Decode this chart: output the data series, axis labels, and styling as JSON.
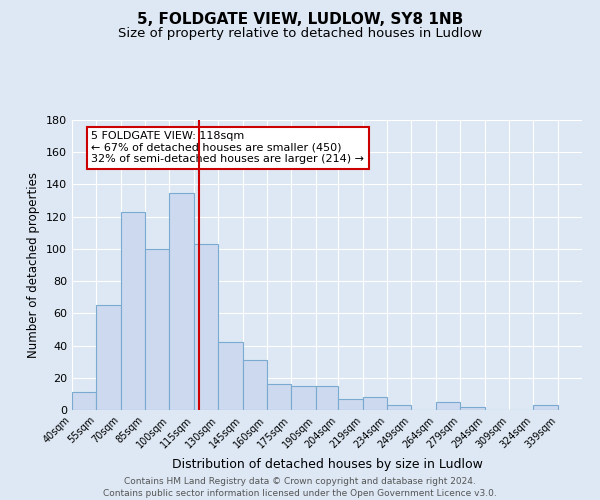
{
  "title": "5, FOLDGATE VIEW, LUDLOW, SY8 1NB",
  "subtitle": "Size of property relative to detached houses in Ludlow",
  "xlabel": "Distribution of detached houses by size in Ludlow",
  "ylabel": "Number of detached properties",
  "bar_left_edges": [
    40,
    55,
    70,
    85,
    100,
    115,
    130,
    145,
    160,
    175,
    190,
    204,
    219,
    234,
    249,
    264,
    279,
    294,
    309,
    324
  ],
  "bar_widths": [
    15,
    15,
    15,
    15,
    15,
    15,
    15,
    15,
    15,
    15,
    14,
    15,
    15,
    15,
    15,
    15,
    15,
    15,
    15,
    15
  ],
  "bar_heights": [
    11,
    65,
    123,
    100,
    135,
    103,
    42,
    31,
    16,
    15,
    15,
    7,
    8,
    3,
    0,
    5,
    2,
    0,
    0,
    3
  ],
  "bar_color": "#ccd9ee",
  "bar_edge_color": "#7aaad0",
  "x_tick_labels": [
    "40sqm",
    "55sqm",
    "70sqm",
    "85sqm",
    "100sqm",
    "115sqm",
    "130sqm",
    "145sqm",
    "160sqm",
    "175sqm",
    "190sqm",
    "204sqm",
    "219sqm",
    "234sqm",
    "249sqm",
    "264sqm",
    "279sqm",
    "294sqm",
    "309sqm",
    "324sqm",
    "339sqm"
  ],
  "ylim": [
    0,
    180
  ],
  "yticks": [
    0,
    20,
    40,
    60,
    80,
    100,
    120,
    140,
    160,
    180
  ],
  "vline_x": 118,
  "vline_color": "#cc0000",
  "annotation_text": "5 FOLDGATE VIEW: 118sqm\n← 67% of detached houses are smaller (450)\n32% of semi-detached houses are larger (214) →",
  "annotation_box_color": "#ffffff",
  "annotation_box_edge": "#cc0000",
  "footer_line1": "Contains HM Land Registry data © Crown copyright and database right 2024.",
  "footer_line2": "Contains public sector information licensed under the Open Government Licence v3.0.",
  "background_color": "#dde8f4",
  "plot_bg_color": "#dde8f4",
  "title_fontsize": 11,
  "subtitle_fontsize": 9.5
}
